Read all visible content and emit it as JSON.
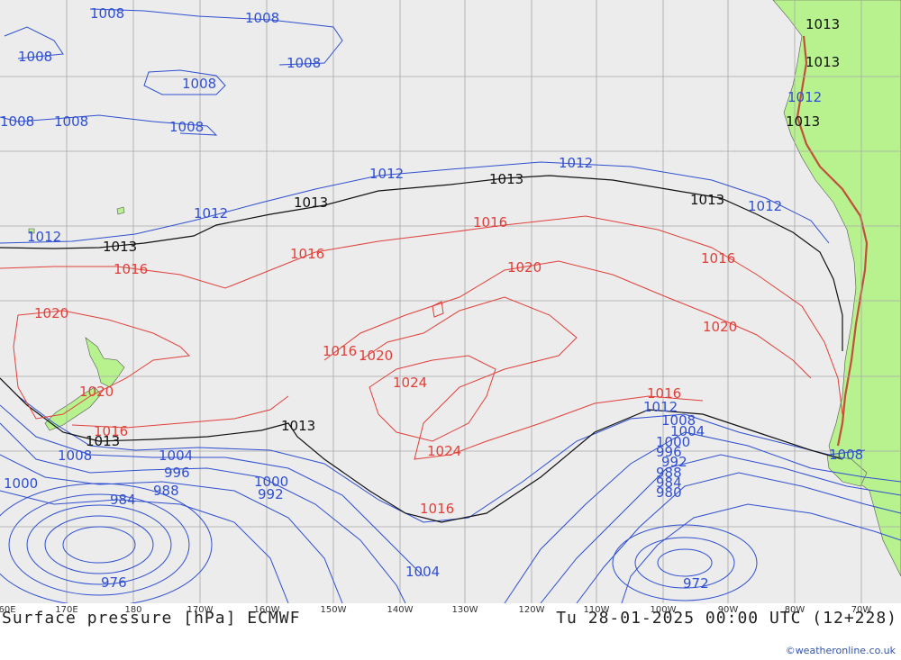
{
  "map": {
    "title_left": "Surface pressure [hPa] ECMWF",
    "title_right": "Tu 28-01-2025 00:00 UTC (12+228)",
    "credit": "©weatheronline.co.uk",
    "colors": {
      "ocean": "#ececec",
      "land": "#b8f28f",
      "grid": "#a8a8a8",
      "isobar_low": "#2f4fd0",
      "isobar_standard": "#111111",
      "isobar_high": "#e0403a"
    },
    "lon_labels": [
      "60E",
      "170E",
      "180",
      "170W",
      "160W",
      "150W",
      "140W",
      "130W",
      "120W",
      "110W",
      "100W",
      "90W",
      "80W",
      "70W"
    ],
    "isobar_labels": [
      "1008",
      "1008",
      "1008",
      "1008",
      "1008",
      "1008",
      "1008",
      "1008",
      "1008",
      "1012",
      "1012",
      "1012",
      "1012",
      "1012",
      "1012",
      "1013",
      "1013",
      "1013",
      "1013",
      "1013",
      "1013",
      "1013",
      "1013",
      "1013",
      "1016",
      "1016",
      "1016",
      "1016",
      "1016",
      "1016",
      "1016",
      "1016",
      "1020",
      "1020",
      "1020",
      "1020",
      "1020",
      "1024",
      "1024",
      "1012",
      "1008",
      "1004",
      "1000",
      "996",
      "992",
      "988",
      "984",
      "980",
      "976",
      "972",
      "1004",
      "1000",
      "1008",
      "996",
      "992",
      "988",
      "984",
      "1000",
      "1004"
    ]
  }
}
